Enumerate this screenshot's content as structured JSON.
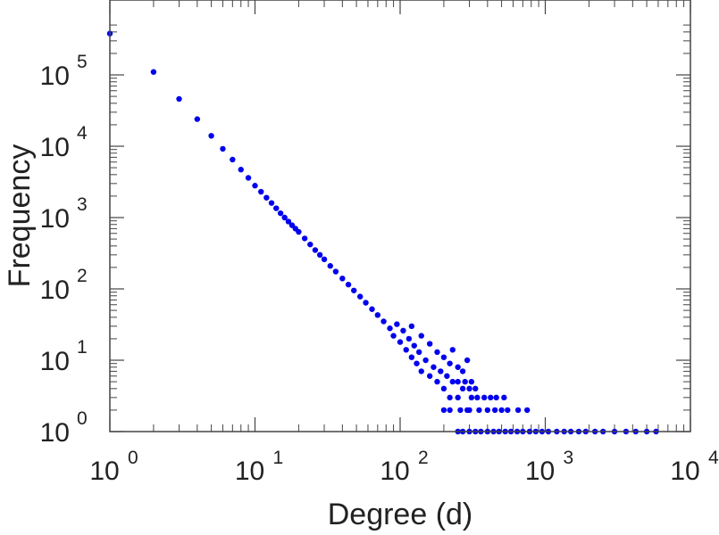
{
  "chart_data": {
    "type": "scatter",
    "xlabel": "Degree (d)",
    "ylabel": "Frequency",
    "x_scale": "log",
    "y_scale": "log",
    "xlim": [
      1,
      10000
    ],
    "ylim": [
      1,
      500000
    ],
    "x_ticks": [
      {
        "base": "10",
        "exp": "0",
        "value": 1
      },
      {
        "base": "10",
        "exp": "1",
        "value": 10
      },
      {
        "base": "10",
        "exp": "2",
        "value": 100
      },
      {
        "base": "10",
        "exp": "3",
        "value": 1000
      },
      {
        "base": "10",
        "exp": "4",
        "value": 10000
      }
    ],
    "y_ticks": [
      {
        "base": "10",
        "exp": "0",
        "value": 1
      },
      {
        "base": "10",
        "exp": "1",
        "value": 10
      },
      {
        "base": "10",
        "exp": "2",
        "value": 100
      },
      {
        "base": "10",
        "exp": "3",
        "value": 1000
      },
      {
        "base": "10",
        "exp": "4",
        "value": 10000
      },
      {
        "base": "10",
        "exp": "5",
        "value": 100000
      }
    ],
    "grid": false,
    "marker_color": "#0000ee",
    "series": [
      {
        "points": [
          [
            1,
            380000
          ],
          [
            2,
            110000
          ],
          [
            3,
            46000
          ],
          [
            4,
            24000
          ],
          [
            5,
            14000
          ],
          [
            6,
            9200
          ],
          [
            7,
            6500
          ],
          [
            8,
            4700
          ],
          [
            9,
            3600
          ],
          [
            10,
            2800
          ],
          [
            11,
            2300
          ],
          [
            12,
            1900
          ],
          [
            13,
            1600
          ],
          [
            14,
            1350
          ],
          [
            15,
            1150
          ],
          [
            16,
            1000
          ],
          [
            17,
            880
          ],
          [
            18,
            780
          ],
          [
            19,
            700
          ],
          [
            20,
            630
          ],
          [
            22,
            510
          ],
          [
            24,
            420
          ],
          [
            26,
            350
          ],
          [
            28,
            300
          ],
          [
            30,
            260
          ],
          [
            33,
            210
          ],
          [
            36,
            175
          ],
          [
            40,
            140
          ],
          [
            44,
            115
          ],
          [
            48,
            95
          ],
          [
            53,
            78
          ],
          [
            58,
            64
          ],
          [
            64,
            52
          ],
          [
            70,
            43
          ],
          [
            77,
            35
          ],
          [
            85,
            28
          ],
          [
            90,
            22
          ],
          [
            95,
            32
          ],
          [
            100,
            18
          ],
          [
            105,
            26
          ],
          [
            110,
            14
          ],
          [
            115,
            20
          ],
          [
            120,
            11
          ],
          [
            125,
            16
          ],
          [
            130,
            9
          ],
          [
            135,
            13
          ],
          [
            140,
            7
          ],
          [
            150,
            10
          ],
          [
            160,
            6
          ],
          [
            170,
            8
          ],
          [
            180,
            5
          ],
          [
            190,
            7
          ],
          [
            200,
            4
          ],
          [
            210,
            6
          ],
          [
            220,
            3
          ],
          [
            230,
            5
          ],
          [
            250,
            3
          ],
          [
            270,
            4
          ],
          [
            290,
            2
          ],
          [
            310,
            3
          ],
          [
            200,
            2
          ],
          [
            220,
            2
          ],
          [
            260,
            2
          ],
          [
            300,
            2
          ],
          [
            350,
            2
          ],
          [
            400,
            2
          ],
          [
            450,
            2
          ],
          [
            500,
            2
          ],
          [
            550,
            2
          ],
          [
            650,
            2
          ],
          [
            750,
            2
          ],
          [
            250,
            1
          ],
          [
            270,
            1
          ],
          [
            300,
            1
          ],
          [
            330,
            1
          ],
          [
            360,
            1
          ],
          [
            400,
            1
          ],
          [
            440,
            1
          ],
          [
            480,
            1
          ],
          [
            530,
            1
          ],
          [
            580,
            1
          ],
          [
            640,
            1
          ],
          [
            700,
            1
          ],
          [
            780,
            1
          ],
          [
            860,
            1
          ],
          [
            950,
            1
          ],
          [
            1050,
            1
          ],
          [
            1200,
            1
          ],
          [
            1350,
            1
          ],
          [
            1500,
            1
          ],
          [
            1700,
            1
          ],
          [
            1900,
            1
          ],
          [
            2200,
            1
          ],
          [
            2500,
            1
          ],
          [
            3000,
            1
          ],
          [
            3600,
            1
          ],
          [
            4200,
            1
          ],
          [
            5000,
            1
          ],
          [
            5800,
            1
          ],
          [
            120,
            30
          ],
          [
            140,
            22
          ],
          [
            160,
            17
          ],
          [
            180,
            13
          ],
          [
            200,
            11
          ],
          [
            220,
            9
          ],
          [
            250,
            8
          ],
          [
            270,
            7
          ],
          [
            290,
            10
          ],
          [
            230,
            14
          ],
          [
            250,
            5
          ],
          [
            280,
            5
          ],
          [
            310,
            5
          ],
          [
            340,
            3
          ],
          [
            380,
            3
          ],
          [
            420,
            3
          ],
          [
            460,
            3
          ],
          [
            520,
            3
          ],
          [
            300,
            4
          ],
          [
            330,
            4
          ]
        ]
      }
    ]
  }
}
